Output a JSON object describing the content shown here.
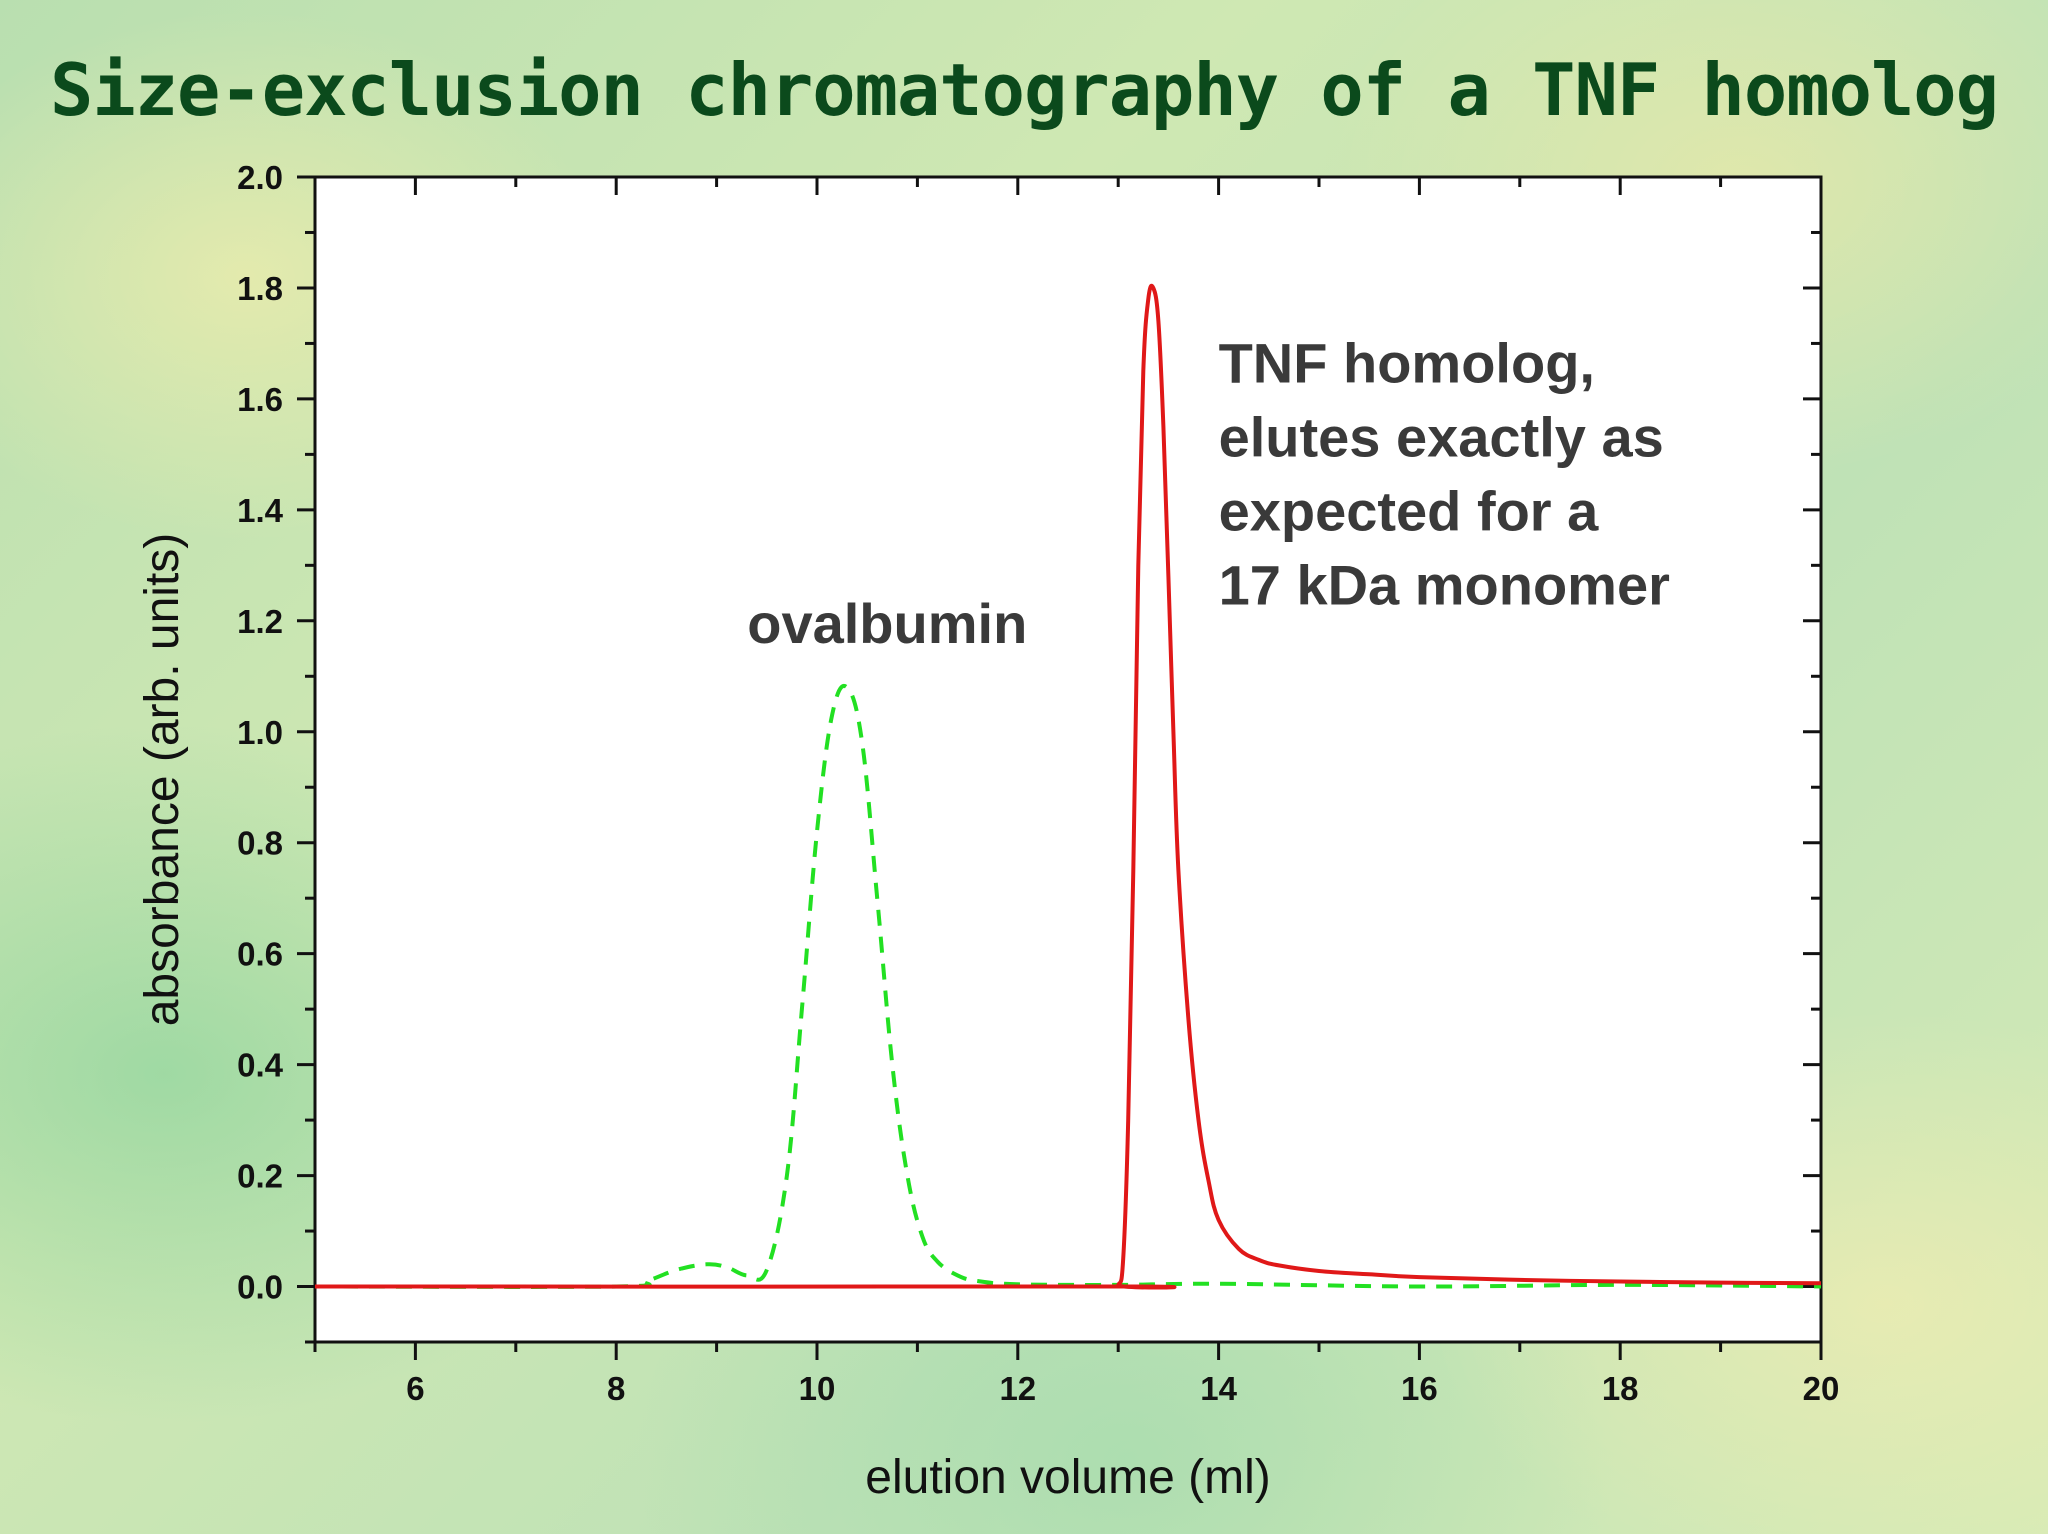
{
  "slide": {
    "title": "Size-exclusion chromatography of a TNF homolog"
  },
  "chart_data": {
    "type": "line",
    "title": "Size-exclusion chromatography of a TNF homolog",
    "xlabel": "elution volume (ml)",
    "ylabel": "absorbance (arb. units)",
    "xlim": [
      5,
      20
    ],
    "ylim": [
      -0.1,
      2.0
    ],
    "x_ticks": [
      6,
      8,
      10,
      12,
      14,
      16,
      18,
      20
    ],
    "x_tick_labels": [
      "6",
      "8",
      "10",
      "12",
      "14",
      "16",
      "18",
      "20"
    ],
    "y_ticks": [
      0.0,
      0.2,
      0.4,
      0.6,
      0.8,
      1.0,
      1.2,
      1.4,
      1.6,
      1.8,
      2.0
    ],
    "y_tick_labels": [
      "0.0",
      "0.2",
      "0.4",
      "0.6",
      "0.8",
      "1.0",
      "1.2",
      "1.4",
      "1.6",
      "1.8",
      "2.0"
    ],
    "grid": false,
    "series": [
      {
        "name": "ovalbumin",
        "color": "#22e022",
        "style": "dashed",
        "x": [
          5.0,
          8.0,
          8.3,
          8.6,
          8.9,
          9.1,
          9.3,
          9.5,
          9.7,
          9.85,
          10.0,
          10.15,
          10.3,
          10.45,
          10.6,
          10.75,
          10.9,
          11.05,
          11.2,
          11.4,
          11.6,
          12.0,
          13.0,
          14.0,
          16.0,
          18.0,
          20.0
        ],
        "y": [
          0.0,
          0.0,
          0.01,
          0.03,
          0.04,
          0.035,
          0.02,
          0.03,
          0.2,
          0.5,
          0.82,
          1.03,
          1.08,
          0.98,
          0.7,
          0.4,
          0.2,
          0.09,
          0.045,
          0.02,
          0.01,
          0.004,
          0.003,
          0.005,
          0.0,
          0.003,
          0.0
        ]
      },
      {
        "name": "TNF homolog",
        "color": "#e01818",
        "style": "solid",
        "x": [
          5.0,
          12.9,
          13.0,
          13.05,
          13.1,
          13.15,
          13.2,
          13.25,
          13.3,
          13.35,
          13.4,
          13.45,
          13.5,
          13.55,
          13.6,
          13.7,
          13.8,
          13.9,
          14.0,
          14.2,
          14.4,
          14.6,
          15.0,
          15.5,
          16.0,
          17.0,
          18.0,
          19.0,
          20.0
        ],
        "y": [
          0.0,
          0.0,
          0.003,
          0.05,
          0.3,
          0.75,
          1.3,
          1.65,
          1.78,
          1.8,
          1.74,
          1.55,
          1.28,
          1.0,
          0.75,
          0.48,
          0.3,
          0.19,
          0.12,
          0.068,
          0.048,
          0.038,
          0.028,
          0.022,
          0.017,
          0.012,
          0.009,
          0.007,
          0.006
        ]
      }
    ],
    "annotations": [
      {
        "id": "ovalbumin",
        "lines": [
          "ovalbumin"
        ],
        "x": 10.7,
        "y": 1.16,
        "anchor": "middle"
      },
      {
        "id": "tnf",
        "lines": [
          "TNF homolog,",
          "elutes exactly as",
          "expected for a",
          "17 kDa monomer"
        ],
        "x": 14.0,
        "y": 1.63,
        "anchor": "start"
      }
    ]
  }
}
